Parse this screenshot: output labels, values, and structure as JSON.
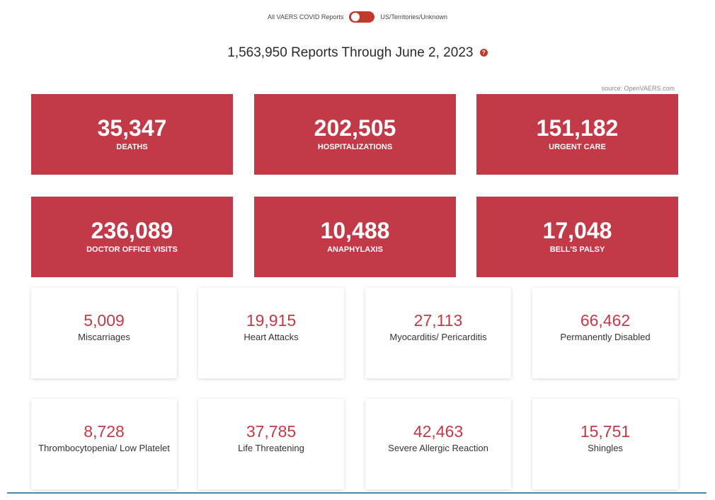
{
  "toggle": {
    "left_label": "All VAERS COVID Reports",
    "right_label": "US/Territories/Unknown",
    "color": "#c0392b"
  },
  "header": {
    "title": "1,563,950 Reports Through June 2, 2023",
    "help_icon": "question-icon",
    "help_glyph": "?"
  },
  "source": "source: OpenVAERS.com",
  "red_tiles": [
    {
      "value": "35,347",
      "label": "DEATHS"
    },
    {
      "value": "202,505",
      "label": "HOSPITALIZATIONS"
    },
    {
      "value": "151,182",
      "label": "URGENT CARE"
    },
    {
      "value": "236,089",
      "label": "DOCTOR OFFICE VISITS"
    },
    {
      "value": "10,488",
      "label": "ANAPHYLAXIS"
    },
    {
      "value": "17,048",
      "label": "BELL'S PALSY"
    }
  ],
  "white_tiles": [
    {
      "value": "5,009",
      "label": "Miscarriages"
    },
    {
      "value": "19,915",
      "label": "Heart Attacks"
    },
    {
      "value": "27,113",
      "label": "Myocarditis/ Pericarditis"
    },
    {
      "value": "66,462",
      "label": "Permanently Disabled"
    },
    {
      "value": "8,728",
      "label": "Thrombocytopenia/ Low Platelet"
    },
    {
      "value": "37,785",
      "label": "Life Threatening"
    },
    {
      "value": "42,463",
      "label": "Severe Allergic Reaction"
    },
    {
      "value": "15,751",
      "label": "Shingles"
    }
  ],
  "colors": {
    "tile_red": "#c23a48",
    "value_red": "#c23a48",
    "rule_blue": "#4a8aa8"
  }
}
